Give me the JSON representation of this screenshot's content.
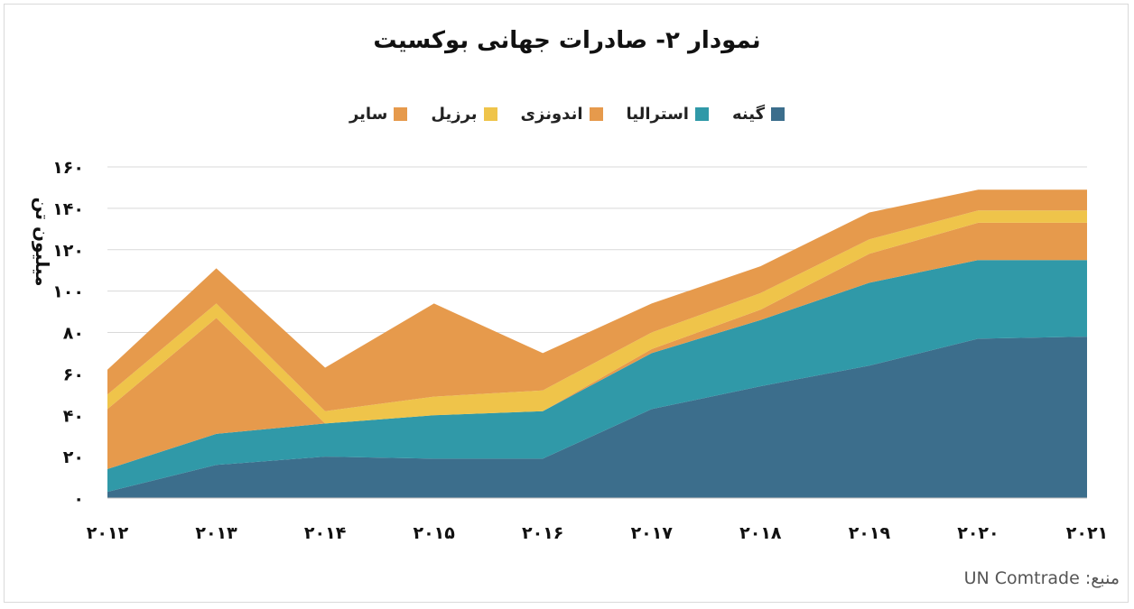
{
  "title": "نمودار ۲- صادرات جهانی بوکسیت",
  "source": "منبع: UN Comtrade",
  "chart_data": {
    "type": "area",
    "title": "نمودار ۲- صادرات جهانی بوکسیت",
    "xlabel": "",
    "ylabel": "میلیون تن",
    "x": [
      "2012",
      "2013",
      "2014",
      "2015",
      "2016",
      "2017",
      "2018",
      "2019",
      "2020",
      "2021"
    ],
    "x_tick_labels": [
      "۲۰۱۲",
      "۲۰۱۳",
      "۲۰۱۴",
      "۲۰۱۵",
      "۲۰۱۶",
      "۲۰۱۷",
      "۲۰۱۸",
      "۲۰۱۹",
      "۲۰۲۰",
      "۲۰۲۱"
    ],
    "ylim": [
      0,
      160
    ],
    "y_ticks": [
      0,
      20,
      40,
      60,
      80,
      100,
      120,
      140,
      160
    ],
    "y_tick_labels": [
      "۰",
      "۲۰",
      "۴۰",
      "۶۰",
      "۸۰",
      "۱۰۰",
      "۱۲۰",
      "۱۴۰",
      "۱۶۰"
    ],
    "stacked": true,
    "grid": true,
    "legend_position": "top",
    "series": [
      {
        "name": "گینه",
        "color": "#3c6e8c",
        "values": [
          3,
          16,
          20,
          19,
          19,
          43,
          54,
          64,
          77,
          78
        ]
      },
      {
        "name": "استرالیا",
        "color": "#3099a8",
        "values": [
          11,
          15,
          16,
          21,
          23,
          27,
          32,
          40,
          38,
          37
        ]
      },
      {
        "name": "اندونزی",
        "color": "#e69a4c",
        "values": [
          29,
          56,
          0,
          0,
          0,
          2,
          5,
          14,
          18,
          18
        ]
      },
      {
        "name": "برزیل",
        "color": "#efc44a",
        "values": [
          7,
          7,
          6,
          9,
          10,
          8,
          8,
          7,
          6,
          6
        ]
      },
      {
        "name": "سایر",
        "color": "#e69a4c",
        "values": [
          12,
          17,
          21,
          45,
          18,
          14,
          13,
          13,
          10,
          10
        ]
      }
    ]
  }
}
